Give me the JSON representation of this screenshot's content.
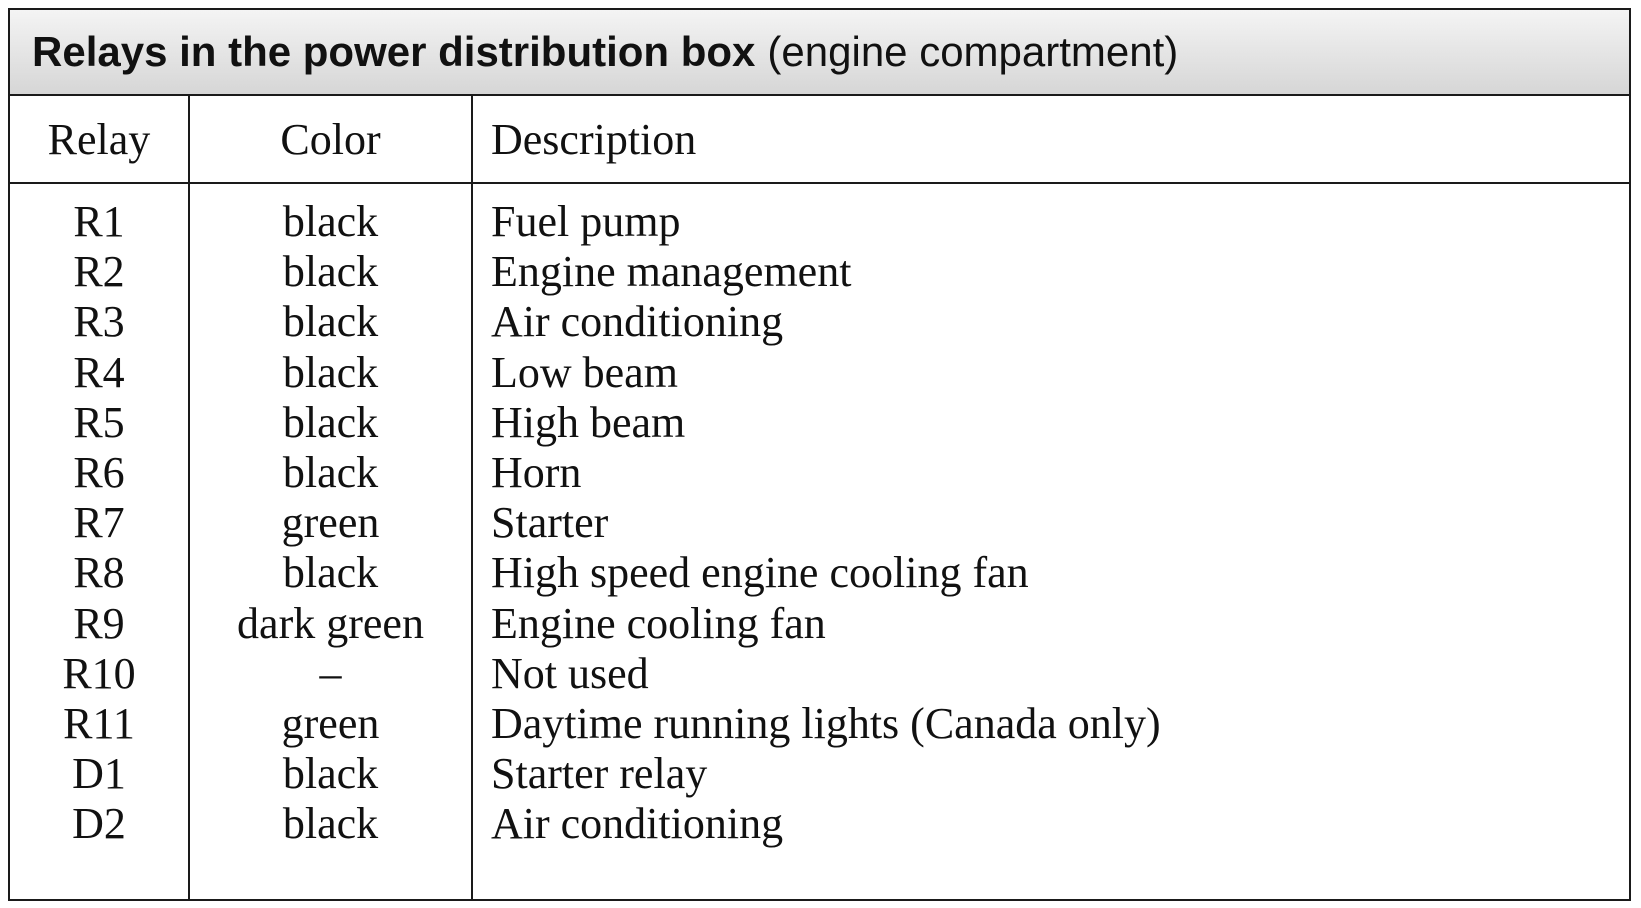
{
  "title": {
    "bold": "Relays in the power distribution box",
    "normal": "(engine compartment)"
  },
  "headers": {
    "relay": "Relay",
    "color": "Color",
    "description": "Description"
  },
  "rows": [
    {
      "relay": "R1",
      "color": "black",
      "description": "Fuel pump"
    },
    {
      "relay": "R2",
      "color": "black",
      "description": "Engine management"
    },
    {
      "relay": "R3",
      "color": "black",
      "description": "Air conditioning"
    },
    {
      "relay": "R4",
      "color": "black",
      "description": "Low beam"
    },
    {
      "relay": "R5",
      "color": "black",
      "description": "High beam"
    },
    {
      "relay": "R6",
      "color": "black",
      "description": "Horn"
    },
    {
      "relay": "R7",
      "color": "green",
      "description": "Starter"
    },
    {
      "relay": "R8",
      "color": "black",
      "description": "High speed engine cooling fan"
    },
    {
      "relay": "R9",
      "color": "dark green",
      "description": "Engine cooling fan"
    },
    {
      "relay": "R10",
      "color": "–",
      "description": "Not used"
    },
    {
      "relay": "R11",
      "color": "green",
      "description": "Daytime running lights (Canada only)"
    },
    {
      "relay": "D1",
      "color": "black",
      "description": "Starter relay"
    },
    {
      "relay": "D2",
      "color": "black",
      "description": "Air conditioning"
    }
  ]
}
